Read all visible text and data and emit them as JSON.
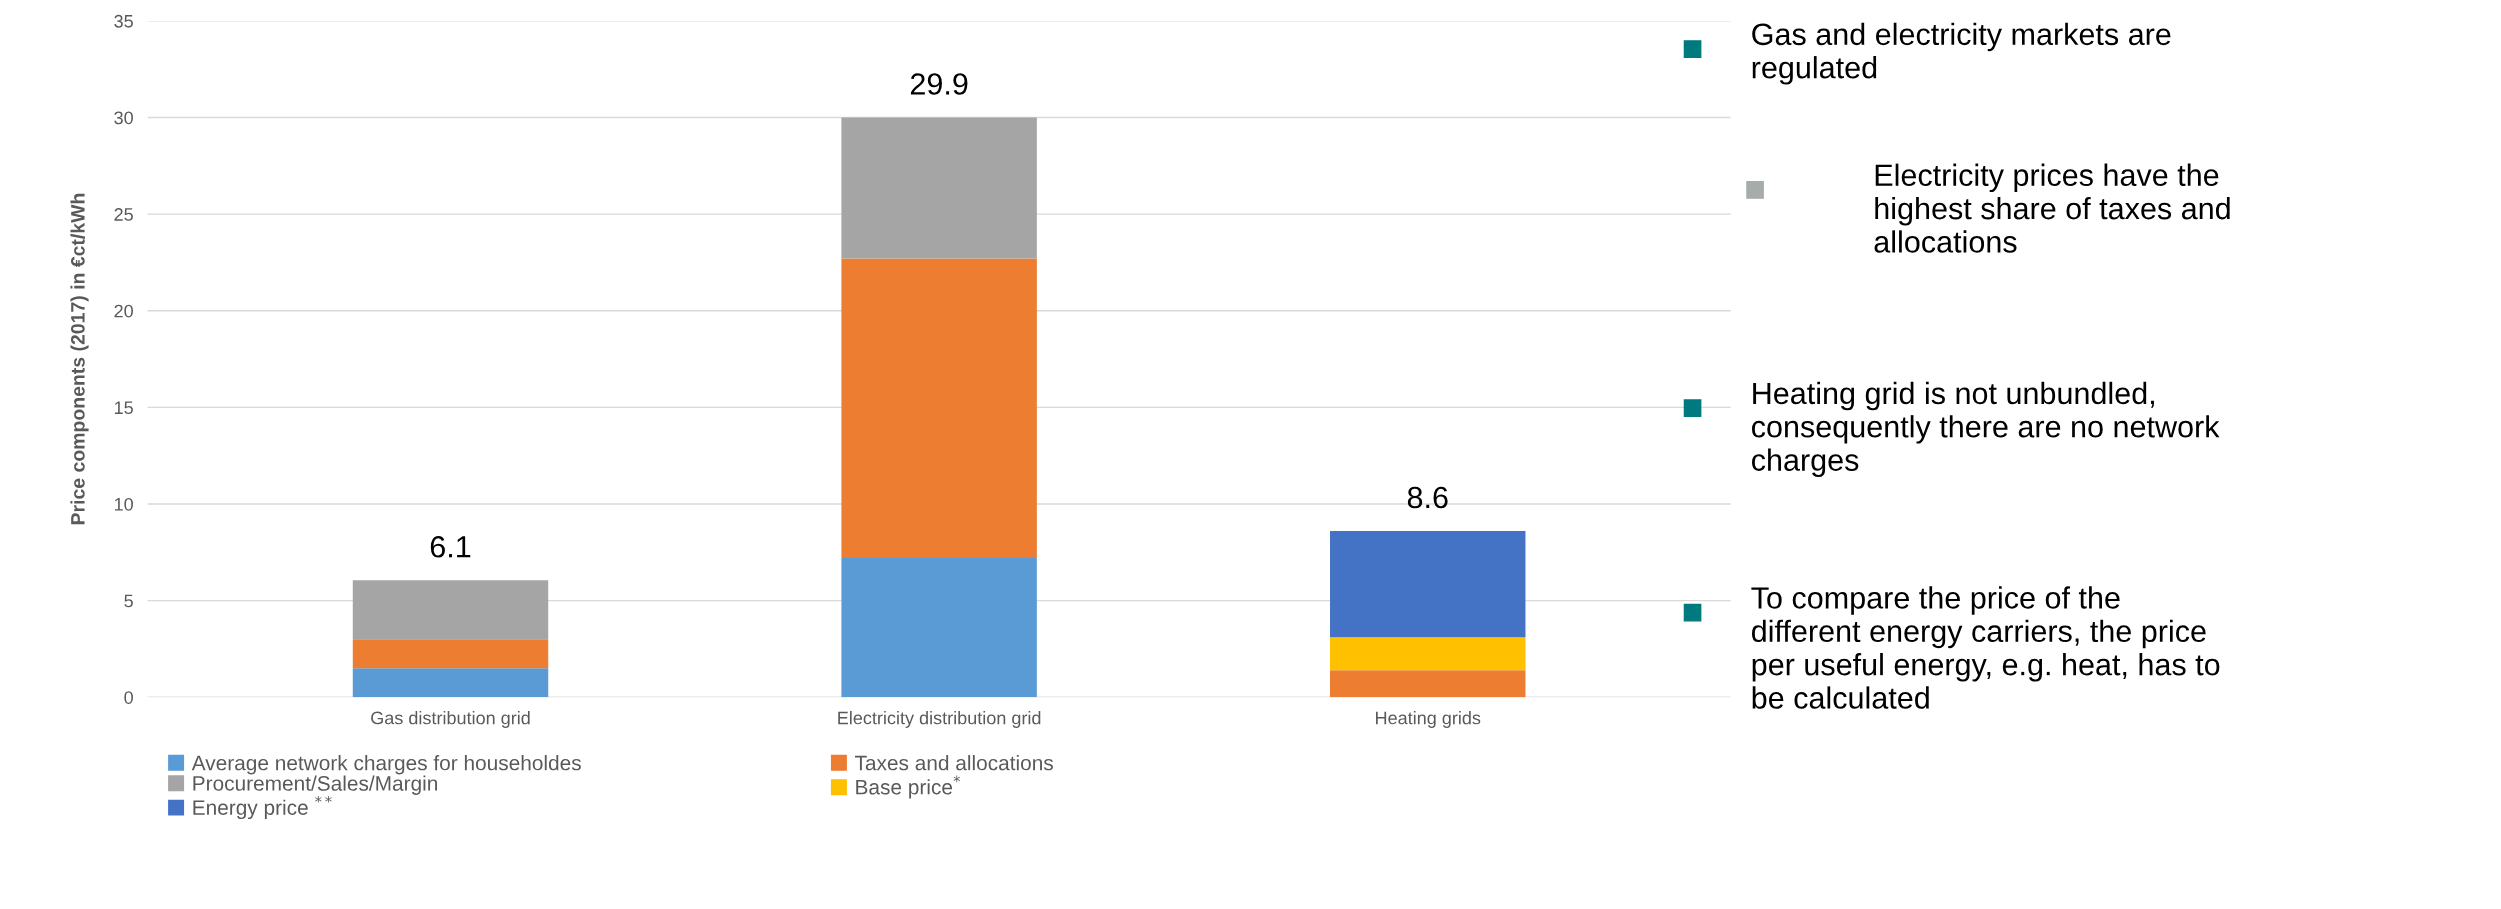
{
  "chart_data": {
    "type": "bar",
    "stacked": true,
    "ylabel": "Price components (2017) in €ct/kWh",
    "categories": [
      "Gas distribution grid",
      "Electricity distribution grid",
      "Heating grids"
    ],
    "series": [
      {
        "name": "Average network charges for householdes",
        "color": "#5b9bd5",
        "values": [
          1.5,
          7.2,
          null
        ]
      },
      {
        "name": "Taxes and allocations",
        "color": "#ed7d31",
        "values": [
          1.5,
          15.5,
          1.4
        ]
      },
      {
        "name": "Procurement/Sales/Margin",
        "color": "#a5a5a5",
        "values": [
          3.05,
          7.3,
          null
        ]
      },
      {
        "name": "Base price$^{*}$",
        "color": "#ffc000",
        "values": [
          null,
          null,
          1.7
        ]
      },
      {
        "name": "Energy price $^{**}$",
        "color": "#4472c4",
        "values": [
          null,
          null,
          5.5
        ]
      }
    ],
    "totals": [
      "6.1",
      "29.9",
      "8.6"
    ],
    "ylim": [
      0,
      35
    ],
    "yticks": [
      0,
      5,
      10,
      15,
      20,
      25,
      30,
      35
    ],
    "grid": "y",
    "legend": "bottom",
    "annotations": [
      "Gas and electricity markets are\nregulated",
      "Electricity prices have the\nhighest share of taxes and\nallocations",
      "Heating grid is not unbundled,\nconsequently there are no network\ncharges",
      "To compare the price of the\ndifferent energy carriers, the price\nper useful energy, e.g. heat, has to\nbe calculated"
    ]
  }
}
